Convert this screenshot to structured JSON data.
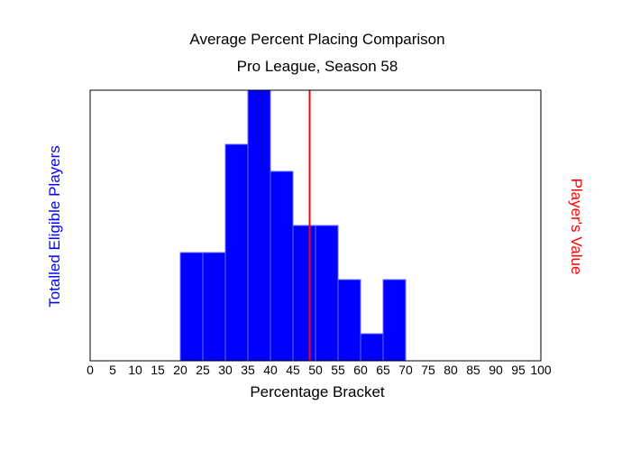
{
  "chart_data": {
    "type": "bar",
    "title": "Average Percent Placing Comparison",
    "subtitle": "Pro League, Season 58",
    "xlabel": "Percentage Bracket",
    "ylabel": "Totalled Eligible Players",
    "y2label": "Player's Value",
    "xlim": [
      0,
      100
    ],
    "ylim": [
      0,
      10
    ],
    "x_ticks": [
      "0",
      "5",
      "10",
      "15",
      "20",
      "25",
      "30",
      "35",
      "40",
      "45",
      "50",
      "55",
      "60",
      "65",
      "70",
      "75",
      "80",
      "85",
      "90",
      "95",
      "100"
    ],
    "bins": [
      {
        "start": 20,
        "end": 25,
        "value": 4
      },
      {
        "start": 25,
        "end": 30,
        "value": 4
      },
      {
        "start": 30,
        "end": 35,
        "value": 8
      },
      {
        "start": 35,
        "end": 40,
        "value": 10
      },
      {
        "start": 40,
        "end": 45,
        "value": 7
      },
      {
        "start": 45,
        "end": 50,
        "value": 5
      },
      {
        "start": 50,
        "end": 55,
        "value": 5
      },
      {
        "start": 55,
        "end": 60,
        "value": 3
      },
      {
        "start": 60,
        "end": 65,
        "value": 1
      },
      {
        "start": 65,
        "end": 70,
        "value": 3
      }
    ],
    "player_value": 48.7,
    "grid": false,
    "colors": {
      "bar": "#0000ff",
      "bar_edge": "#6a6aff",
      "player_line": "#ff0000",
      "ylabel": "#0000ff",
      "y2label": "#ff0000"
    }
  }
}
